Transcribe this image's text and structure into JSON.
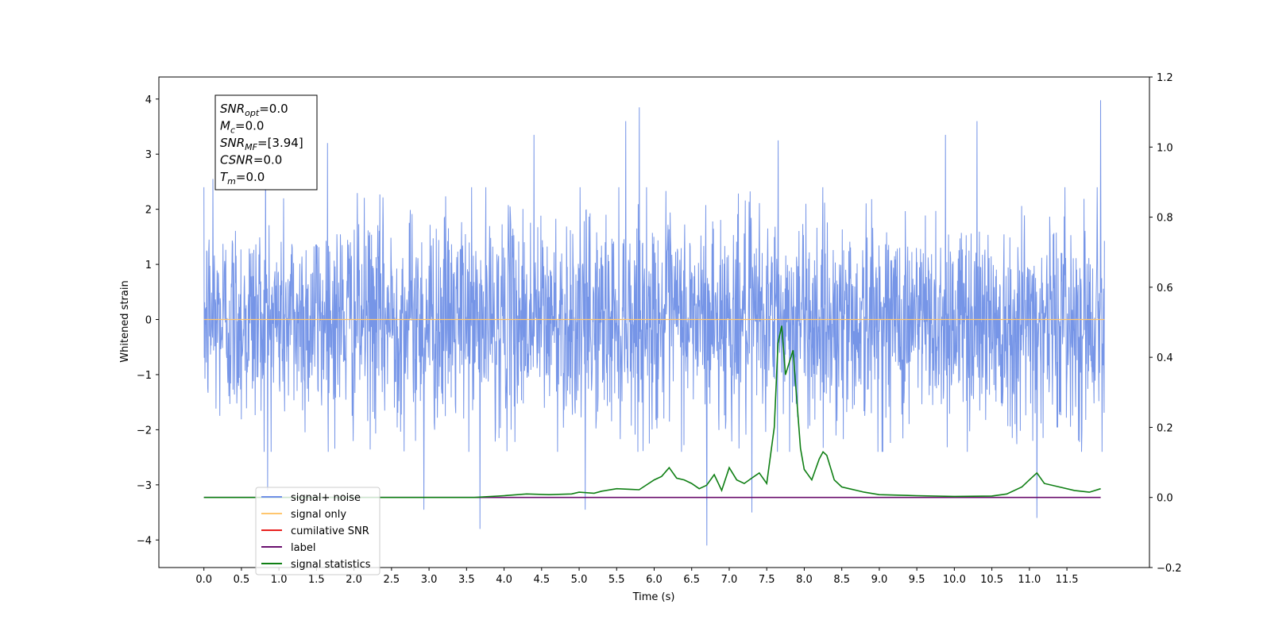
{
  "chart_data": {
    "type": "line",
    "title": "",
    "xlabel": "Time (s)",
    "ylabel": "Whitened strain",
    "y2label": "",
    "xlim": [
      -0.6,
      12.6
    ],
    "ylim": [
      -4.5,
      4.4
    ],
    "y2lim": [
      -0.2,
      1.2
    ],
    "x_ticks": [
      "0.0",
      "0.5",
      "1.0",
      "1.5",
      "2.0",
      "2.5",
      "3.0",
      "3.5",
      "4.0",
      "4.5",
      "5.0",
      "5.5",
      "6.0",
      "6.5",
      "7.0",
      "7.5",
      "8.0",
      "8.5",
      "9.0",
      "9.5",
      "10.0",
      "10.5",
      "11.0",
      "11.5"
    ],
    "y_ticks": [
      "4",
      "3",
      "2",
      "1",
      "0",
      "−1",
      "−2",
      "−3",
      "−4"
    ],
    "y2_ticks": [
      "1.2",
      "1.0",
      "0.8",
      "0.6",
      "0.4",
      "0.2",
      "0.0",
      "−0.2"
    ],
    "legend": {
      "placement": "lower-left",
      "entries": [
        {
          "label": "signal+ noise",
          "color": "#6f8fe6"
        },
        {
          "label": "signal only",
          "color": "#ffc66e"
        },
        {
          "label": "cumilative SNR",
          "color": "#e8211f"
        },
        {
          "label": "label",
          "color": "#6a0f6e"
        },
        {
          "label": "signal statistics",
          "color": "#0f7f14"
        }
      ]
    },
    "noise_series": {
      "name": "signal+ noise",
      "x_range": [
        0.0,
        12.0
      ],
      "typical_range": [
        -1.8,
        1.8
      ],
      "peaks": [
        {
          "x": 0.12,
          "y": 2.55
        },
        {
          "x": 0.85,
          "y": -3.1
        },
        {
          "x": 0.82,
          "y": 3.15
        },
        {
          "x": 1.65,
          "y": 3.2
        },
        {
          "x": 2.93,
          "y": -3.45
        },
        {
          "x": 3.68,
          "y": -3.8
        },
        {
          "x": 4.4,
          "y": 3.35
        },
        {
          "x": 5.08,
          "y": -3.45
        },
        {
          "x": 5.8,
          "y": 3.85
        },
        {
          "x": 5.62,
          "y": 3.6
        },
        {
          "x": 6.7,
          "y": -4.1
        },
        {
          "x": 7.3,
          "y": -3.5
        },
        {
          "x": 7.65,
          "y": 3.25
        },
        {
          "x": 9.88,
          "y": 3.35
        },
        {
          "x": 10.3,
          "y": 3.6
        },
        {
          "x": 11.1,
          "y": -3.6
        },
        {
          "x": 11.95,
          "y": 3.98
        }
      ]
    },
    "signal_only": {
      "name": "signal only",
      "value": 0.0
    },
    "label_series": {
      "name": "label",
      "value": 0.0,
      "x_range": [
        0.0,
        11.95
      ]
    },
    "statistics_series": {
      "name": "signal statistics",
      "x": [
        0.0,
        1.0,
        2.0,
        3.0,
        3.6,
        4.0,
        4.3,
        4.6,
        4.9,
        5.0,
        5.2,
        5.3,
        5.5,
        5.7,
        5.8,
        6.0,
        6.1,
        6.2,
        6.3,
        6.4,
        6.5,
        6.6,
        6.7,
        6.8,
        6.9,
        7.0,
        7.1,
        7.2,
        7.3,
        7.4,
        7.5,
        7.6,
        7.65,
        7.7,
        7.75,
        7.85,
        7.95,
        8.0,
        8.1,
        8.2,
        8.25,
        8.3,
        8.4,
        8.5,
        8.6,
        8.7,
        8.8,
        9.0,
        9.5,
        10.0,
        10.5,
        10.7,
        10.9,
        11.0,
        11.1,
        11.2,
        11.4,
        11.6,
        11.8,
        11.95
      ],
      "y": [
        0.0,
        0.0,
        0.0,
        0.0,
        0.0,
        0.005,
        0.01,
        0.008,
        0.01,
        0.015,
        0.012,
        0.018,
        0.025,
        0.023,
        0.022,
        0.05,
        0.06,
        0.085,
        0.055,
        0.05,
        0.04,
        0.025,
        0.035,
        0.065,
        0.02,
        0.085,
        0.05,
        0.04,
        0.055,
        0.07,
        0.04,
        0.2,
        0.44,
        0.49,
        0.35,
        0.42,
        0.14,
        0.08,
        0.05,
        0.11,
        0.13,
        0.12,
        0.05,
        0.03,
        0.025,
        0.02,
        0.015,
        0.008,
        0.005,
        0.003,
        0.004,
        0.01,
        0.03,
        0.05,
        0.07,
        0.04,
        0.03,
        0.02,
        0.015,
        0.025
      ]
    },
    "annotation": {
      "lines": [
        {
          "name": "SNR",
          "sub": "opt",
          "value": "=0.0"
        },
        {
          "name": "M",
          "sub": "c",
          "value": "=0.0"
        },
        {
          "name": "SNR",
          "sub": "MF",
          "value": "=[3.94]"
        },
        {
          "name": "CSNR",
          "sub": "",
          "value": "=0.0"
        },
        {
          "name": "T",
          "sub": "m",
          "value": "=0.0"
        }
      ]
    },
    "grid": false
  }
}
